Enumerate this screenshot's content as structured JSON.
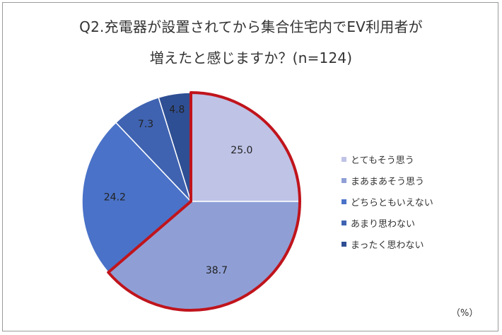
{
  "title": {
    "line1": "Q2.充電器が設置されてから集合住宅内でEV利用者が",
    "line2": "増えたと感じますか？(n=124)"
  },
  "unit_label": "（%）",
  "chart_data": {
    "type": "pie",
    "title": "Q2.充電器が設置されてから集合住宅内でEV利用者が増えたと感じますか？(n=124)",
    "categories": [
      "とてもそう思う",
      "まあまあそう思う",
      "どちらともいえない",
      "あまり思わない",
      "まったく思わない"
    ],
    "values": [
      25.0,
      38.7,
      24.2,
      7.3,
      4.8
    ],
    "value_labels": [
      "25.0",
      "38.7",
      "24.2",
      "7.3",
      "4.8"
    ],
    "colors": [
      "#bfc3e6",
      "#8f9fd6",
      "#4a72c8",
      "#3f63b1",
      "#2f4f94"
    ],
    "highlighted": [
      "とてもそう思う",
      "まあまあそう思う"
    ],
    "highlight_color": "#c0141c",
    "legend_position": "right",
    "unit": "%"
  }
}
